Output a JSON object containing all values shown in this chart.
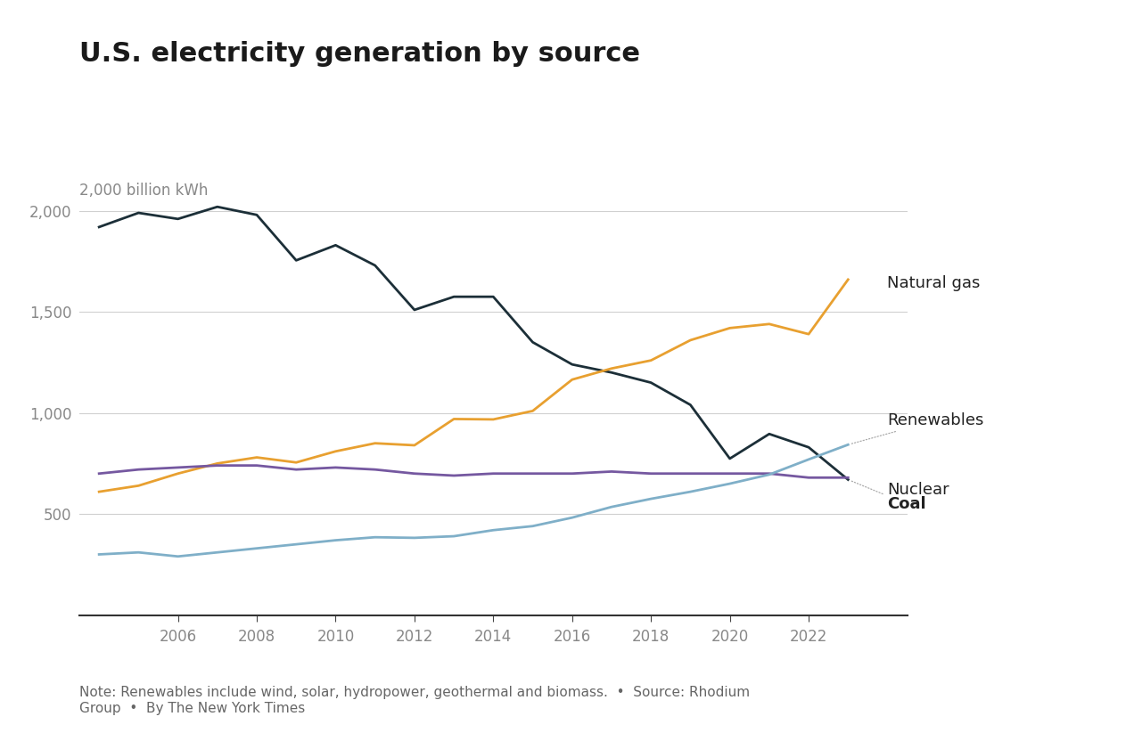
{
  "title": "U.S. electricity generation by source",
  "ylabel": "2,000 billion kWh",
  "note": "Note: Renewables include wind, solar, hydropower, geothermal and biomass.  •  Source: Rhodium\nGroup  •  By The New York Times",
  "years": [
    2004,
    2005,
    2006,
    2007,
    2008,
    2009,
    2010,
    2011,
    2012,
    2013,
    2014,
    2015,
    2016,
    2017,
    2018,
    2019,
    2020,
    2021,
    2022,
    2023
  ],
  "coal": [
    1920,
    1990,
    1960,
    2020,
    1980,
    1755,
    1830,
    1730,
    1510,
    1575,
    1575,
    1350,
    1240,
    1200,
    1150,
    1040,
    774,
    896,
    830,
    670
  ],
  "natural_gas": [
    610,
    640,
    700,
    750,
    780,
    755,
    810,
    850,
    840,
    970,
    968,
    1010,
    1165,
    1220,
    1260,
    1360,
    1420,
    1440,
    1390,
    1660
  ],
  "nuclear": [
    700,
    720,
    730,
    740,
    740,
    720,
    730,
    720,
    700,
    690,
    700,
    700,
    700,
    710,
    700,
    700,
    700,
    700,
    680,
    680
  ],
  "renewables": [
    300,
    310,
    290,
    310,
    330,
    350,
    370,
    385,
    382,
    390,
    420,
    440,
    482,
    535,
    575,
    610,
    650,
    695,
    770,
    843
  ],
  "coal_color": "#1c2f38",
  "natural_gas_color": "#e8a030",
  "nuclear_color": "#7558a0",
  "renewables_color": "#7fafc8",
  "background_color": "#ffffff",
  "grid_color": "#d0d0d0",
  "tick_color": "#888888",
  "ylim": [
    0,
    2200
  ],
  "yticks": [
    500,
    1000,
    1500,
    2000
  ],
  "xtick_years": [
    2006,
    2008,
    2010,
    2012,
    2014,
    2016,
    2018,
    2020,
    2022
  ],
  "xlim_left": 2003.5,
  "xlim_right": 2024.5,
  "title_fontsize": 22,
  "label_fontsize": 13,
  "tick_fontsize": 12,
  "note_fontsize": 11,
  "line_width": 2.0
}
